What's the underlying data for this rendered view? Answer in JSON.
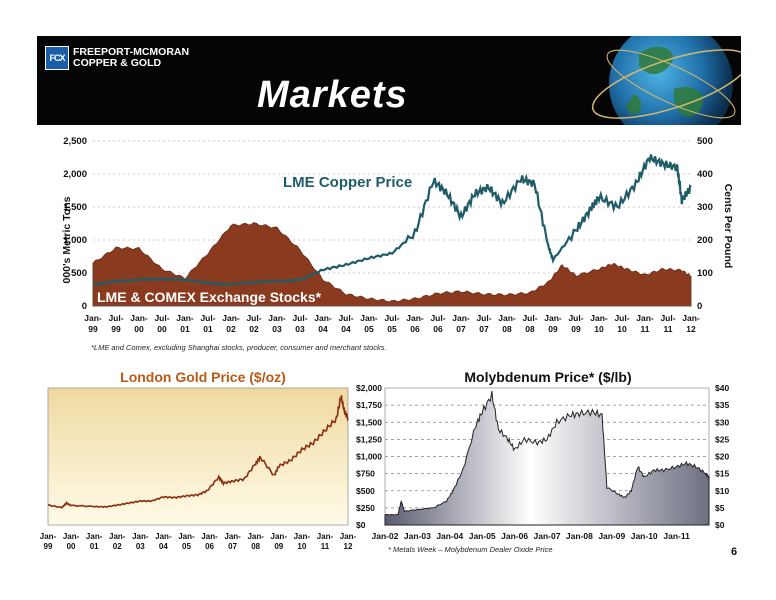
{
  "header": {
    "company_line1": "FREEPORT-MCMORAN",
    "company_line2": "COPPER & GOLD",
    "logo_mark": "FCX",
    "title": "Markets"
  },
  "page_number": "6",
  "footnotes": {
    "top": "*LME and Comex, excluding Shanghai stocks, producer, consumer and merchant stocks.",
    "moly": "* Metals Week – Molybdenum Dealer Oxide Price"
  },
  "colors": {
    "copper_line": "#1f5c68",
    "stocks_fill": "#8a3a1f",
    "gold_line": "#8b2e10",
    "moly_fill": "#a9a9b8"
  },
  "chart_data": [
    {
      "type": "area",
      "id": "copper",
      "title": "",
      "series_label_price": "LME Copper Price",
      "series_label_stocks": "LME & COMEX Exchange Stocks*",
      "ylabel_left": "000's Metric Tons",
      "ylabel_right": "Cents Per Pound",
      "ylim_left": [
        0,
        2500
      ],
      "ylim_right": [
        0,
        500
      ],
      "yticks_left": [
        "0",
        "500",
        "1,000",
        "1,500",
        "2,000",
        "2,500"
      ],
      "yticks_right": [
        "0",
        "100",
        "200",
        "300",
        "400",
        "500"
      ],
      "xticks": [
        [
          "Jan-",
          "99"
        ],
        [
          "Jul-",
          "99"
        ],
        [
          "Jan-",
          "00"
        ],
        [
          "Jul-",
          "00"
        ],
        [
          "Jan-",
          "01"
        ],
        [
          "Jul-",
          "01"
        ],
        [
          "Jan-",
          "02"
        ],
        [
          "Jul-",
          "02"
        ],
        [
          "Jan-",
          "03"
        ],
        [
          "Jul-",
          "03"
        ],
        [
          "Jan-",
          "04"
        ],
        [
          "Jul-",
          "04"
        ],
        [
          "Jan-",
          "05"
        ],
        [
          "Jul-",
          "05"
        ],
        [
          "Jan-",
          "06"
        ],
        [
          "Jul-",
          "06"
        ],
        [
          "Jan-",
          "07"
        ],
        [
          "Jul-",
          "07"
        ],
        [
          "Jan-",
          "08"
        ],
        [
          "Jul-",
          "08"
        ],
        [
          "Jan-",
          "09"
        ],
        [
          "Jul-",
          "09"
        ],
        [
          "Jan-",
          "10"
        ],
        [
          "Jul-",
          "10"
        ],
        [
          "Jan-",
          "11"
        ],
        [
          "Jul-",
          "11"
        ],
        [
          "Jan-",
          "12"
        ]
      ],
      "x_start": 1999.0,
      "x_end": 2012.0,
      "price_cents": [
        [
          1999.0,
          65
        ],
        [
          1999.5,
          75
        ],
        [
          2000.0,
          80
        ],
        [
          2000.5,
          82
        ],
        [
          2001.0,
          80
        ],
        [
          2001.5,
          70
        ],
        [
          2001.9,
          65
        ],
        [
          2002.5,
          72
        ],
        [
          2003.0,
          75
        ],
        [
          2003.5,
          78
        ],
        [
          2004.0,
          110
        ],
        [
          2004.5,
          125
        ],
        [
          2005.0,
          145
        ],
        [
          2005.5,
          160
        ],
        [
          2006.0,
          220
        ],
        [
          2006.4,
          380
        ],
        [
          2006.7,
          340
        ],
        [
          2007.0,
          270
        ],
        [
          2007.3,
          340
        ],
        [
          2007.6,
          360
        ],
        [
          2007.9,
          310
        ],
        [
          2008.3,
          385
        ],
        [
          2008.6,
          370
        ],
        [
          2008.9,
          180
        ],
        [
          2009.0,
          140
        ],
        [
          2009.5,
          230
        ],
        [
          2009.8,
          290
        ],
        [
          2010.0,
          330
        ],
        [
          2010.4,
          300
        ],
        [
          2010.8,
          370
        ],
        [
          2011.1,
          450
        ],
        [
          2011.4,
          430
        ],
        [
          2011.7,
          420
        ],
        [
          2011.8,
          320
        ],
        [
          2012.0,
          360
        ]
      ],
      "stocks_kt": [
        [
          1999.0,
          650
        ],
        [
          1999.5,
          880
        ],
        [
          2000.0,
          870
        ],
        [
          2000.5,
          560
        ],
        [
          2001.0,
          420
        ],
        [
          2001.5,
          800
        ],
        [
          2002.0,
          1220
        ],
        [
          2002.5,
          1250
        ],
        [
          2003.0,
          1180
        ],
        [
          2003.5,
          850
        ],
        [
          2004.0,
          400
        ],
        [
          2004.5,
          180
        ],
        [
          2005.0,
          110
        ],
        [
          2005.5,
          70
        ],
        [
          2006.0,
          110
        ],
        [
          2006.5,
          190
        ],
        [
          2007.0,
          220
        ],
        [
          2007.5,
          180
        ],
        [
          2008.0,
          170
        ],
        [
          2008.5,
          200
        ],
        [
          2008.9,
          360
        ],
        [
          2009.2,
          620
        ],
        [
          2009.5,
          460
        ],
        [
          2010.0,
          560
        ],
        [
          2010.3,
          640
        ],
        [
          2010.6,
          560
        ],
        [
          2011.0,
          470
        ],
        [
          2011.4,
          560
        ],
        [
          2011.8,
          540
        ],
        [
          2012.0,
          450
        ]
      ]
    },
    {
      "type": "line",
      "id": "gold",
      "title": "London Gold Price ($/oz)",
      "ylim": [
        0,
        2000
      ],
      "yticks": [
        "$0",
        "$250",
        "$500",
        "$750",
        "$1,000",
        "$1,250",
        "$1,500",
        "$1,750",
        "$2,000"
      ],
      "xticks": [
        [
          "Jan-",
          "99"
        ],
        [
          "Jan-",
          "00"
        ],
        [
          "Jan-",
          "01"
        ],
        [
          "Jan-",
          "02"
        ],
        [
          "Jan-",
          "03"
        ],
        [
          "Jan-",
          "04"
        ],
        [
          "Jan-",
          "05"
        ],
        [
          "Jan-",
          "06"
        ],
        [
          "Jan-",
          "07"
        ],
        [
          "Jan-",
          "08"
        ],
        [
          "Jan-",
          "09"
        ],
        [
          "Jan-",
          "10"
        ],
        [
          "Jan-",
          "11"
        ],
        [
          "Jan-",
          "12"
        ]
      ],
      "x_start": 1999.0,
      "x_end": 2012.0,
      "values": [
        [
          1999.0,
          290
        ],
        [
          1999.6,
          255
        ],
        [
          1999.8,
          320
        ],
        [
          2000.0,
          285
        ],
        [
          2001.0,
          270
        ],
        [
          2001.5,
          265
        ],
        [
          2002.0,
          290
        ],
        [
          2002.5,
          320
        ],
        [
          2003.0,
          350
        ],
        [
          2003.5,
          350
        ],
        [
          2004.0,
          410
        ],
        [
          2004.5,
          400
        ],
        [
          2005.0,
          425
        ],
        [
          2005.5,
          440
        ],
        [
          2005.9,
          500
        ],
        [
          2006.4,
          700
        ],
        [
          2006.6,
          610
        ],
        [
          2007.0,
          640
        ],
        [
          2007.5,
          670
        ],
        [
          2008.0,
          900
        ],
        [
          2008.2,
          990
        ],
        [
          2008.8,
          720
        ],
        [
          2009.0,
          860
        ],
        [
          2009.5,
          940
        ],
        [
          2010.0,
          1100
        ],
        [
          2010.5,
          1200
        ],
        [
          2011.0,
          1380
        ],
        [
          2011.5,
          1550
        ],
        [
          2011.7,
          1880
        ],
        [
          2011.85,
          1650
        ],
        [
          2012.0,
          1560
        ]
      ]
    },
    {
      "type": "area",
      "id": "moly",
      "title": "Molybdenum Price* ($/lb)",
      "ylim": [
        0,
        40
      ],
      "yticks": [
        "$0",
        "$5",
        "$10",
        "$15",
        "$20",
        "$25",
        "$30",
        "$35",
        "$40"
      ],
      "xticks": [
        "Jan-02",
        "Jan-03",
        "Jan-04",
        "Jan-05",
        "Jan-06",
        "Jan-07",
        "Jan-08",
        "Jan-09",
        "Jan-10",
        "Jan-11"
      ],
      "x_start": 2002.0,
      "x_end": 2012.0,
      "values": [
        [
          2002.0,
          3
        ],
        [
          2002.4,
          3
        ],
        [
          2002.5,
          7
        ],
        [
          2002.6,
          4
        ],
        [
          2003.0,
          4.5
        ],
        [
          2003.5,
          5
        ],
        [
          2003.9,
          7
        ],
        [
          2004.1,
          10
        ],
        [
          2004.4,
          16
        ],
        [
          2004.8,
          29
        ],
        [
          2005.0,
          33
        ],
        [
          2005.3,
          38
        ],
        [
          2005.5,
          28
        ],
        [
          2005.8,
          25
        ],
        [
          2006.0,
          22
        ],
        [
          2006.3,
          25
        ],
        [
          2006.7,
          24
        ],
        [
          2007.0,
          25
        ],
        [
          2007.3,
          30
        ],
        [
          2007.7,
          32
        ],
        [
          2008.0,
          32.5
        ],
        [
          2008.4,
          33
        ],
        [
          2008.7,
          32
        ],
        [
          2008.85,
          11
        ],
        [
          2009.2,
          9
        ],
        [
          2009.4,
          8
        ],
        [
          2009.6,
          10
        ],
        [
          2009.8,
          17
        ],
        [
          2010.0,
          14
        ],
        [
          2010.3,
          16
        ],
        [
          2010.6,
          16
        ],
        [
          2011.0,
          17
        ],
        [
          2011.3,
          18
        ],
        [
          2011.6,
          17
        ],
        [
          2011.9,
          15
        ],
        [
          2012.0,
          14
        ]
      ]
    }
  ]
}
